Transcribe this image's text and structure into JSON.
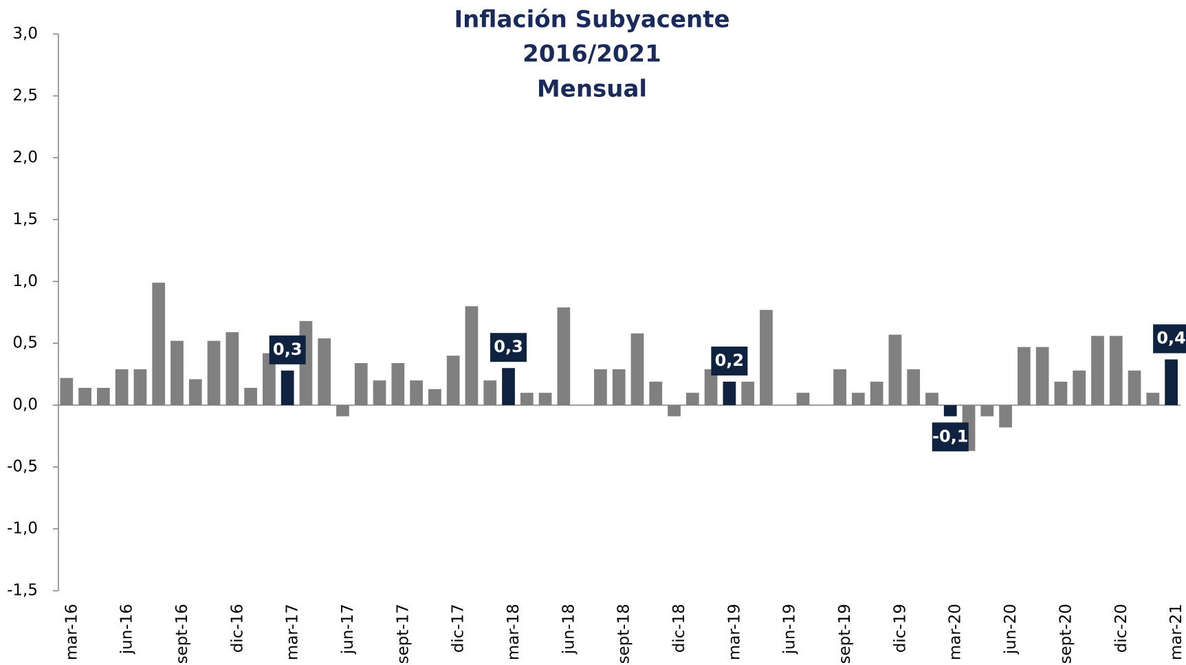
{
  "chart_data": {
    "type": "bar",
    "title": "Inflación Subyacente",
    "subtitle": [
      "2016/2021",
      "Mensual"
    ],
    "categories": [
      "mar-16",
      null,
      null,
      "jun-16",
      null,
      null,
      "sept-16",
      null,
      null,
      "dic-16",
      null,
      null,
      "mar-17",
      null,
      null,
      "jun-17",
      null,
      null,
      "sept-17",
      null,
      null,
      "dic-17",
      null,
      null,
      "mar-18",
      null,
      null,
      "jun-18",
      null,
      null,
      "sept-18",
      null,
      null,
      "dic-18",
      null,
      null,
      "mar-19",
      null,
      null,
      "jun-19",
      null,
      null,
      "sept-19",
      null,
      null,
      "dic-19",
      null,
      null,
      "mar-20",
      null,
      null,
      "jun-20",
      null,
      null,
      "sept-20",
      null,
      null,
      "dic-20",
      null,
      null,
      "mar-21"
    ],
    "values": [
      0.22,
      0.14,
      0.14,
      0.29,
      0.29,
      0.99,
      0.52,
      0.21,
      0.52,
      0.59,
      0.14,
      0.42,
      0.28,
      0.68,
      0.54,
      -0.09,
      0.34,
      0.2,
      0.34,
      0.2,
      0.13,
      0.4,
      0.8,
      0.2,
      0.3,
      0.1,
      0.1,
      0.79,
      0,
      0.29,
      0.29,
      0.58,
      0.19,
      -0.09,
      0.1,
      0.29,
      0.19,
      0.19,
      0.77,
      0,
      0.1,
      0,
      0.29,
      0.1,
      0.19,
      0.57,
      0.29,
      0.1,
      -0.09,
      -0.37,
      -0.09,
      -0.18,
      0.47,
      0.47,
      0.19,
      0.28,
      0.56,
      0.56,
      0.28,
      0.1,
      0.37
    ],
    "value_labels": [
      null,
      null,
      null,
      null,
      null,
      null,
      null,
      null,
      null,
      null,
      null,
      null,
      "0,3",
      null,
      null,
      null,
      null,
      null,
      null,
      null,
      null,
      null,
      null,
      null,
      "0,3",
      null,
      null,
      null,
      null,
      null,
      null,
      null,
      null,
      null,
      null,
      null,
      "0,2",
      null,
      null,
      null,
      null,
      null,
      null,
      null,
      null,
      null,
      null,
      null,
      "-0,1",
      null,
      null,
      null,
      null,
      null,
      null,
      null,
      null,
      null,
      null,
      null,
      "0,4"
    ],
    "color": "#808080",
    "highlight_color": "#0f2340",
    "title_color": "#1a2a5a",
    "ylim": [
      -1.5,
      3.0
    ],
    "yticks": [
      {
        "value": -1.5,
        "label": "-1,5"
      },
      {
        "value": -1.0,
        "label": "-1,0"
      },
      {
        "value": -0.5,
        "label": "-0,5"
      },
      {
        "value": 0,
        "label": "0,0"
      },
      {
        "value": 0.5,
        "label": "0,5"
      },
      {
        "value": 1.0,
        "label": "1,0"
      },
      {
        "value": 1.5,
        "label": "1,5"
      },
      {
        "value": 2.0,
        "label": "2,0"
      },
      {
        "value": 2.5,
        "label": "2,5"
      },
      {
        "value": 3.0,
        "label": "3,0"
      }
    ],
    "grid": false
  }
}
